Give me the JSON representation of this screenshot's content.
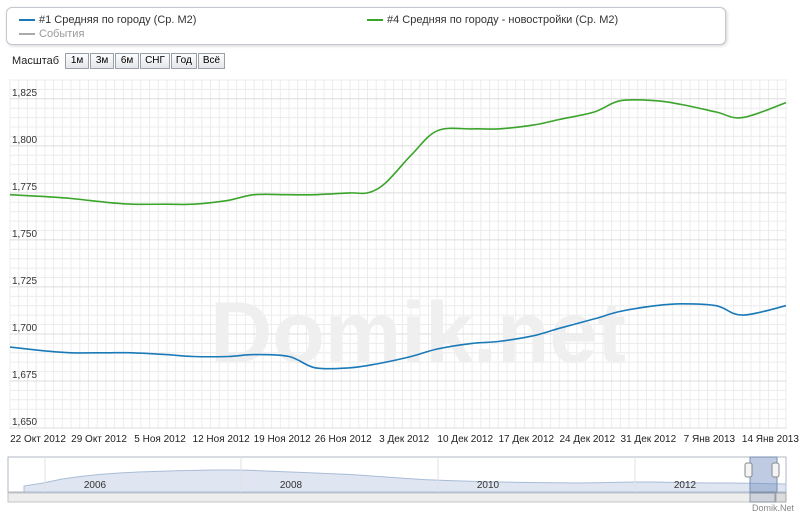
{
  "legend": {
    "series1": "#1 Средняя по городу (Ср. М2)",
    "series2": "#4 Средняя по городу - новостройки (Ср. М2)",
    "events": "События"
  },
  "zoom": {
    "label": "Масштаб",
    "buttons": [
      "1м",
      "3м",
      "6м",
      "СНГ",
      "Год",
      "Всё"
    ]
  },
  "watermark": "Domik.net",
  "credit": "Domik.Net",
  "colors": {
    "series1": "#1a7ab8",
    "series2": "#3aa52a",
    "events": "#aaaaaa",
    "grid": "#dcdcdc"
  },
  "chart_data": {
    "type": "line",
    "x_labels": [
      "22 Окт 2012",
      "29 Окт 2012",
      "5 Ноя 2012",
      "12 Ноя 2012",
      "19 Ноя 2012",
      "26 Ноя 2012",
      "3 Дек 2012",
      "10 Дек 2012",
      "17 Дек 2012",
      "24 Дек 2012",
      "31 Дек 2012",
      "7 Янв 2013",
      "14 Янв 2013"
    ],
    "y_ticks": [
      "1,650",
      "1,675",
      "1,700",
      "1,725",
      "1,750",
      "1,775",
      "1,800",
      "1,825"
    ],
    "ylim": [
      1650,
      1835
    ],
    "xlim": [
      "2012-10-22",
      "2013-01-19"
    ],
    "grid": true,
    "series": [
      {
        "name": "#1 Средняя по городу (Ср. М2)",
        "x": [
          "2012-10-22",
          "2012-10-26",
          "2012-10-29",
          "2012-11-02",
          "2012-11-05",
          "2012-11-09",
          "2012-11-12",
          "2012-11-16",
          "2012-11-19",
          "2012-11-23",
          "2012-11-26",
          "2012-11-30",
          "2012-12-03",
          "2012-12-07",
          "2012-12-10",
          "2012-12-14",
          "2012-12-17",
          "2012-12-21",
          "2012-12-24",
          "2012-12-28",
          "2012-12-31",
          "2013-01-04",
          "2013-01-07",
          "2013-01-11",
          "2013-01-14",
          "2013-01-19"
        ],
        "values": [
          1693,
          1691,
          1690,
          1690,
          1690,
          1689,
          1688,
          1688,
          1689,
          1688,
          1682,
          1682,
          1684,
          1688,
          1692,
          1695,
          1696,
          1699,
          1703,
          1708,
          1712,
          1715,
          1716,
          1715,
          1710,
          1715
        ]
      },
      {
        "name": "#4 Средняя по городу - новостройки (Ср. М2)",
        "x": [
          "2012-10-22",
          "2012-10-26",
          "2012-10-29",
          "2012-11-02",
          "2012-11-05",
          "2012-11-09",
          "2012-11-12",
          "2012-11-16",
          "2012-11-19",
          "2012-11-23",
          "2012-11-26",
          "2012-11-30",
          "2012-12-02",
          "2012-12-04",
          "2012-12-07",
          "2012-12-10",
          "2012-12-14",
          "2012-12-17",
          "2012-12-21",
          "2012-12-24",
          "2012-12-28",
          "2012-12-31",
          "2013-01-04",
          "2013-01-07",
          "2013-01-11",
          "2013-01-14",
          "2013-01-19"
        ],
        "values": [
          1774,
          1773,
          1772,
          1770,
          1769,
          1769,
          1769,
          1771,
          1774,
          1774,
          1774,
          1775,
          1775,
          1780,
          1795,
          1808,
          1809,
          1809,
          1811,
          1814,
          1818,
          1824,
          1824,
          1822,
          1818,
          1815,
          1823
        ]
      }
    ],
    "navigator": {
      "x_labels": [
        "2006",
        "2008",
        "2010",
        "2012"
      ],
      "profile": [
        0.1,
        0.25,
        0.45,
        0.58,
        0.68,
        0.75,
        0.8,
        0.83,
        0.86,
        0.88,
        0.9,
        0.9,
        0.88,
        0.84,
        0.8,
        0.76,
        0.72,
        0.68,
        0.62,
        0.55,
        0.48,
        0.42,
        0.38,
        0.35,
        0.32,
        0.3,
        0.28,
        0.27,
        0.26,
        0.25,
        0.26,
        0.28,
        0.3,
        0.3,
        0.28,
        0.26,
        0.25,
        0.25,
        0.24,
        0.22,
        0.2
      ]
    }
  }
}
